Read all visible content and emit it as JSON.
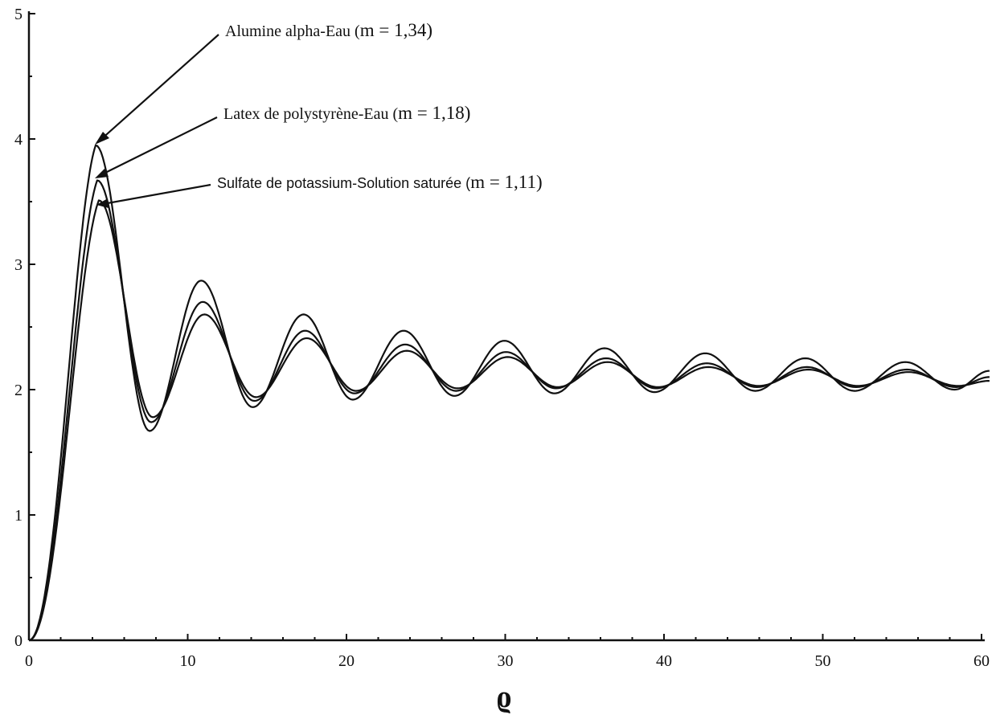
{
  "chart_data": {
    "type": "line",
    "title": "",
    "xlabel": "ϱ",
    "ylabel": "",
    "xlim": [
      0,
      60
    ],
    "ylim": [
      0,
      5
    ],
    "x_ticks": [
      0,
      10,
      20,
      30,
      40,
      50,
      60
    ],
    "y_ticks": [
      0,
      1,
      2,
      3,
      4,
      5
    ],
    "grid": false,
    "series": [
      {
        "name": "Alumine alpha-Eau (m = 1,34)",
        "label_text": "Alumine alpha-Eau (",
        "label_m": "m = 1,34)",
        "relative_index": 1.34,
        "peaks": [
          [
            4.2,
            3.95
          ],
          [
            10.85,
            2.87
          ],
          [
            17.3,
            2.6
          ],
          [
            23.6,
            2.47
          ],
          [
            29.95,
            2.39
          ],
          [
            36.25,
            2.33
          ],
          [
            42.6,
            2.29
          ],
          [
            48.9,
            2.25
          ],
          [
            55.2,
            2.22
          ]
        ],
        "troughs": [
          [
            7.6,
            1.67
          ],
          [
            14.1,
            1.86
          ],
          [
            20.4,
            1.92
          ],
          [
            26.8,
            1.95
          ],
          [
            33.1,
            1.97
          ],
          [
            39.4,
            1.98
          ],
          [
            45.75,
            1.99
          ],
          [
            52.0,
            1.99
          ],
          [
            58.3,
            2.0
          ]
        ],
        "end": [
          60.5,
          2.15
        ]
      },
      {
        "name": "Latex de polystyrène-Eau (m = 1,18)",
        "label_text": "Latex de polystyrène-Eau (",
        "label_m": "m = 1,18)",
        "relative_index": 1.18,
        "peaks": [
          [
            4.3,
            3.67
          ],
          [
            10.95,
            2.7
          ],
          [
            17.4,
            2.47
          ],
          [
            23.7,
            2.36
          ],
          [
            30.05,
            2.3
          ],
          [
            36.35,
            2.25
          ],
          [
            42.7,
            2.21
          ],
          [
            49.0,
            2.18
          ],
          [
            55.3,
            2.16
          ]
        ],
        "troughs": [
          [
            7.7,
            1.74
          ],
          [
            14.2,
            1.91
          ],
          [
            20.5,
            1.97
          ],
          [
            26.9,
            1.99
          ],
          [
            33.2,
            2.01
          ],
          [
            39.5,
            2.01
          ],
          [
            45.85,
            2.02
          ],
          [
            52.1,
            2.02
          ],
          [
            58.4,
            2.02
          ]
        ],
        "end": [
          60.5,
          2.1
        ]
      },
      {
        "name": "Sulfate de potassium-Solution saturée (m = 1,11)",
        "label_text": "Sulfate de potassium-Solution saturée (",
        "label_m": "m = 1,11)",
        "relative_index": 1.11,
        "peaks": [
          [
            4.4,
            3.51
          ],
          [
            11.05,
            2.6
          ],
          [
            17.5,
            2.41
          ],
          [
            23.8,
            2.31
          ],
          [
            30.15,
            2.26
          ],
          [
            36.45,
            2.22
          ],
          [
            42.8,
            2.18
          ],
          [
            49.1,
            2.16
          ],
          [
            55.4,
            2.14
          ]
        ],
        "troughs": [
          [
            7.8,
            1.78
          ],
          [
            14.3,
            1.94
          ],
          [
            20.6,
            1.99
          ],
          [
            27.0,
            2.01
          ],
          [
            33.3,
            2.02
          ],
          [
            39.6,
            2.02
          ],
          [
            45.95,
            2.03
          ],
          [
            52.2,
            2.03
          ],
          [
            58.5,
            2.03
          ]
        ],
        "end": [
          60.5,
          2.07
        ]
      }
    ]
  }
}
